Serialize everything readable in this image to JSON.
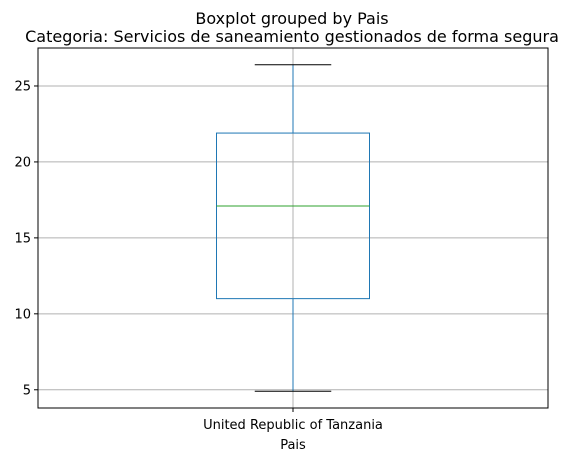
{
  "chart_data": {
    "type": "boxplot",
    "suptitle": "Boxplot grouped by Pais",
    "title": "Categoria: Servicios de saneamiento gestionados de forma segura",
    "xlabel": "Pais",
    "ylabel": "",
    "categories": [
      "United Republic of Tanzania"
    ],
    "boxes": [
      {
        "category": "United Republic of Tanzania",
        "whisker_low": 4.9,
        "q1": 11.0,
        "median": 17.1,
        "q3": 21.9,
        "whisker_high": 26.4
      }
    ],
    "ylim": [
      3.8,
      27.5
    ],
    "yticks": [
      5,
      10,
      15,
      20,
      25
    ],
    "grid": true,
    "colors": {
      "box": "#1f77b4",
      "median": "#2ca02c",
      "whisker": "#1f77b4",
      "cap": "#000000",
      "grid": "#b0b0b0"
    }
  }
}
